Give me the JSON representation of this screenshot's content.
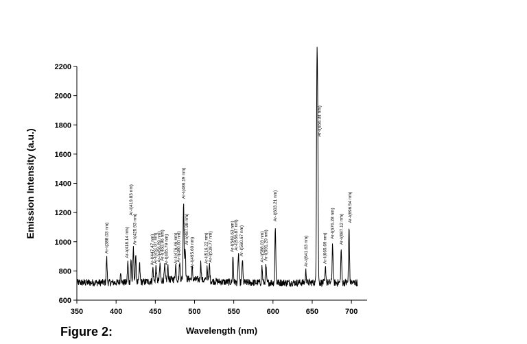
{
  "caption": "Figure 2:",
  "chart_data": {
    "type": "line",
    "xlabel": "Wavelength (nm)",
    "ylabel": "Emission Intensity (a.u.)",
    "xlim": [
      350,
      720
    ],
    "ylim": [
      600,
      2200
    ],
    "xticks": [
      350,
      400,
      450,
      500,
      550,
      600,
      650,
      700
    ],
    "yticks": [
      600,
      800,
      1000,
      1200,
      1400,
      1600,
      1800,
      2000,
      2200
    ],
    "grid": false,
    "baseline": 720,
    "noise": 25,
    "peaks": [
      {
        "x": 388,
        "y": 890
      },
      {
        "x": 406,
        "y": 800
      },
      {
        "x": 415,
        "y": 860
      },
      {
        "x": 419,
        "y": 880
      },
      {
        "x": 422,
        "y": 950
      },
      {
        "x": 425,
        "y": 900
      },
      {
        "x": 430,
        "y": 840
      },
      {
        "x": 447,
        "y": 810
      },
      {
        "x": 451,
        "y": 820
      },
      {
        "x": 456,
        "y": 830
      },
      {
        "x": 462,
        "y": 810
      },
      {
        "x": 466,
        "y": 810
      },
      {
        "x": 476,
        "y": 820
      },
      {
        "x": 481,
        "y": 830
      },
      {
        "x": 486,
        "y": 1265
      },
      {
        "x": 488,
        "y": 950
      },
      {
        "x": 497,
        "y": 800
      },
      {
        "x": 508,
        "y": 840
      },
      {
        "x": 516,
        "y": 820
      },
      {
        "x": 519,
        "y": 830
      },
      {
        "x": 549,
        "y": 900
      },
      {
        "x": 556,
        "y": 920
      },
      {
        "x": 561,
        "y": 880
      },
      {
        "x": 586,
        "y": 830
      },
      {
        "x": 591,
        "y": 840
      },
      {
        "x": 603,
        "y": 1110
      },
      {
        "x": 642,
        "y": 800
      },
      {
        "x": 656,
        "y": 2060
      },
      {
        "x": 657,
        "y": 1720
      },
      {
        "x": 667,
        "y": 820
      },
      {
        "x": 676,
        "y": 990
      },
      {
        "x": 687,
        "y": 950
      },
      {
        "x": 697,
        "y": 1100
      }
    ],
    "annotations": [
      {
        "text": "Ar-I(388.03 nm)",
        "x": 388,
        "y": 900
      },
      {
        "text": "Ar-I(418.14 nm)",
        "x": 414,
        "y": 870
      },
      {
        "text": "Ar-I(419.83 nm)",
        "x": 419,
        "y": 1160
      },
      {
        "text": "Ar-I(425.93 nm)",
        "x": 424,
        "y": 960
      },
      {
        "text": "Ar-I(447.47 nm)",
        "x": 446,
        "y": 820
      },
      {
        "text": "Ar-I(451.07 nm)",
        "x": 450,
        "y": 830
      },
      {
        "text": "Ar-I(456.89 nm)",
        "x": 455,
        "y": 840
      },
      {
        "text": "Ar-I(460.96 nm)",
        "x": 459,
        "y": 850
      },
      {
        "text": "Ar-I(465.79 nm)",
        "x": 464,
        "y": 820
      },
      {
        "text": "Ar-I(476.46 nm)",
        "x": 476,
        "y": 830
      },
      {
        "text": "Ar-I(480.60 nm)",
        "x": 480,
        "y": 840
      },
      {
        "text": "Ar-I(486.19 nm)",
        "x": 486,
        "y": 1275
      },
      {
        "text": "Ar-I(487.98 nm)",
        "x": 490,
        "y": 960
      },
      {
        "text": "Ar-I(495.60 nm)",
        "x": 497,
        "y": 800
      },
      {
        "text": "Ar-I(516.22 nm)",
        "x": 515,
        "y": 830
      },
      {
        "text": "Ar-I(518.77 nm)",
        "x": 520,
        "y": 840
      },
      {
        "text": "Ar-I(548.63 nm)",
        "x": 548,
        "y": 910
      },
      {
        "text": "Ar-I(556.87 nm)",
        "x": 553,
        "y": 920
      },
      {
        "text": "Ar-I(560.67 nm)",
        "x": 560,
        "y": 880
      },
      {
        "text": "Ar-I(588.03 nm)",
        "x": 586,
        "y": 840
      },
      {
        "text": "Ar-I(591.20 nm)",
        "x": 591,
        "y": 850
      },
      {
        "text": "Ar-I(603.21 nm)",
        "x": 603,
        "y": 1120
      },
      {
        "text": "Ar-I(641.63 nm)",
        "x": 642,
        "y": 810
      },
      {
        "text": "Ar-I(656.34 nm)",
        "x": 659,
        "y": 1700
      },
      {
        "text": "Ar-I(665.69 nm)",
        "x": 666,
        "y": 830
      },
      {
        "text": "Ar-I(676.28 nm)",
        "x": 676,
        "y": 1000
      },
      {
        "text": "Ar-I(687.12 nm)",
        "x": 687,
        "y": 960
      },
      {
        "text": "Ar-I(696.54 nm)",
        "x": 698,
        "y": 1110
      }
    ]
  }
}
